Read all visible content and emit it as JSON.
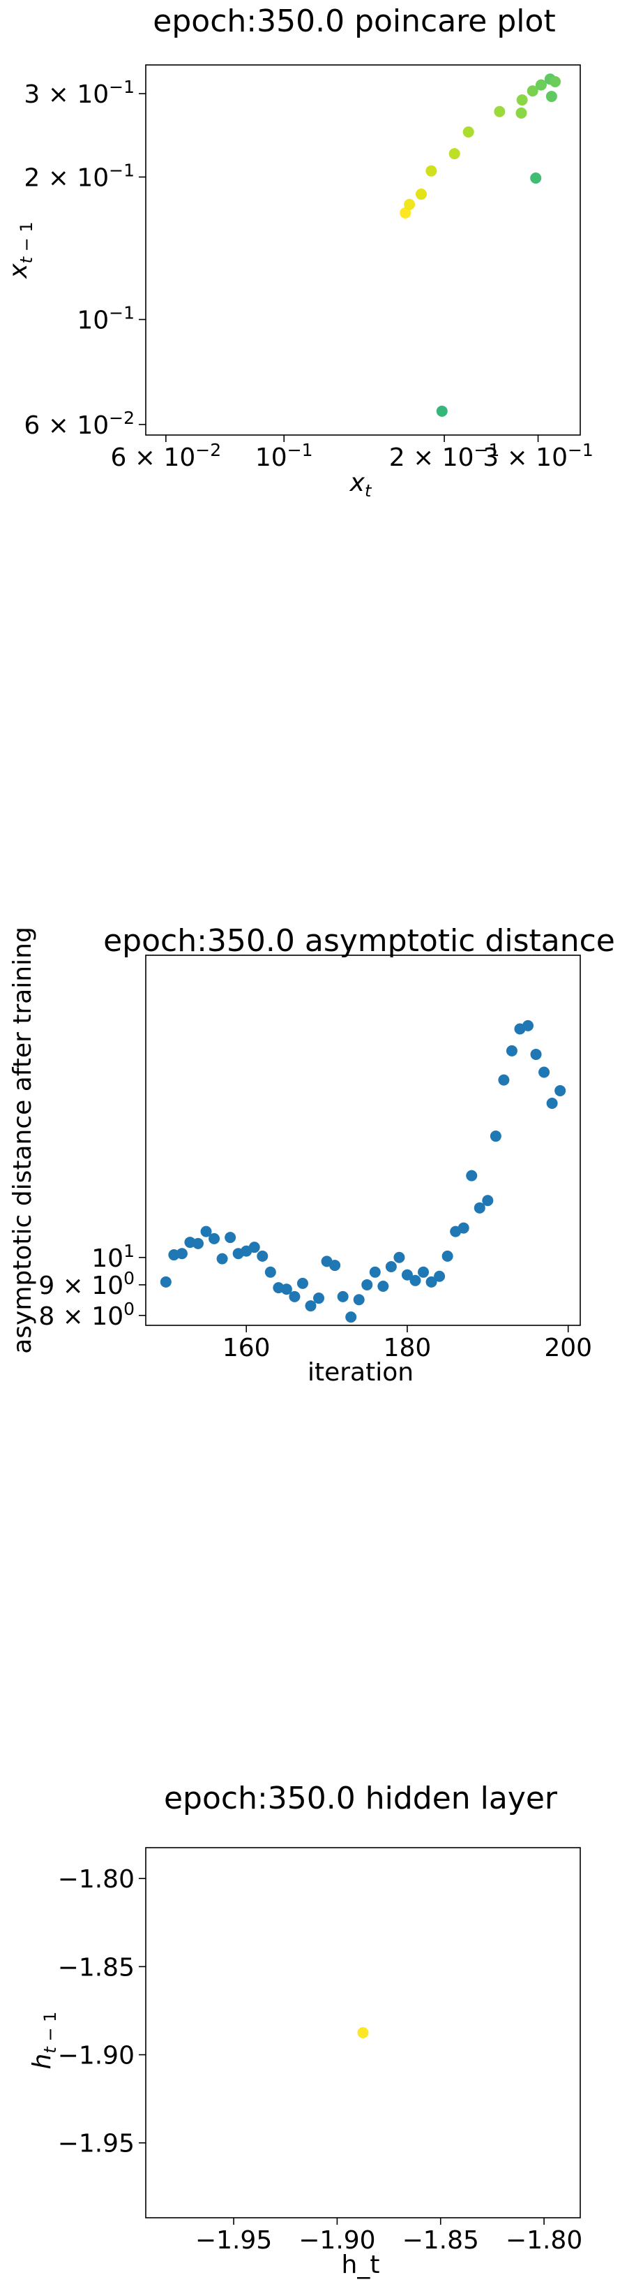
{
  "chart_data": [
    {
      "type": "scatter",
      "title": "epoch:350.0 poincare plot",
      "xlabel": "x_t",
      "ylabel": "x_{t-1}",
      "xscale": "log",
      "yscale": "log",
      "xlim": [
        0.055,
        0.36
      ],
      "ylim": [
        0.057,
        0.345
      ],
      "grid": false,
      "colormap": "viridis",
      "x_ticks": [
        {
          "value": 0.06,
          "label_base": "6 × 10",
          "label_exp": "−2"
        },
        {
          "value": 0.1,
          "label_base": "10",
          "label_exp": "−1"
        },
        {
          "value": 0.2,
          "label_base": "2 × 10",
          "label_exp": "−1"
        },
        {
          "value": 0.3,
          "label_base": "3 × 10",
          "label_exp": "−1"
        }
      ],
      "y_ticks": [
        {
          "value": 0.06,
          "label_base": "6 × 10",
          "label_exp": "−2"
        },
        {
          "value": 0.1,
          "label_base": "10",
          "label_exp": "−1"
        },
        {
          "value": 0.2,
          "label_base": "2 × 10",
          "label_exp": "−1"
        },
        {
          "value": 0.3,
          "label_base": "3 × 10",
          "label_exp": "−1"
        }
      ],
      "points": [
        {
          "x": 0.169,
          "y": 0.168,
          "color": "#fde725"
        },
        {
          "x": 0.172,
          "y": 0.175,
          "color": "#f1e51d"
        },
        {
          "x": 0.181,
          "y": 0.184,
          "color": "#e2e418"
        },
        {
          "x": 0.189,
          "y": 0.206,
          "color": "#d0e11c"
        },
        {
          "x": 0.198,
          "y": 0.064,
          "color": "#35b779"
        },
        {
          "x": 0.209,
          "y": 0.224,
          "color": "#bddf26"
        },
        {
          "x": 0.222,
          "y": 0.249,
          "color": "#addc30"
        },
        {
          "x": 0.254,
          "y": 0.275,
          "color": "#9bd93c"
        },
        {
          "x": 0.279,
          "y": 0.273,
          "color": "#8bd646"
        },
        {
          "x": 0.28,
          "y": 0.291,
          "color": "#8bd646"
        },
        {
          "x": 0.297,
          "y": 0.199,
          "color": "#40bd72"
        },
        {
          "x": 0.293,
          "y": 0.304,
          "color": "#7ad151"
        },
        {
          "x": 0.304,
          "y": 0.313,
          "color": "#6ccd5a"
        },
        {
          "x": 0.316,
          "y": 0.322,
          "color": "#5ec962"
        },
        {
          "x": 0.318,
          "y": 0.296,
          "color": "#60ca60"
        },
        {
          "x": 0.323,
          "y": 0.318,
          "color": "#6ccd5a"
        }
      ]
    },
    {
      "type": "scatter",
      "title": "epoch:350.0 asymptotic distance",
      "xlabel": "iteration",
      "ylabel": "asymptotic distance after training",
      "yscale": "log",
      "xlim": [
        147.5,
        201.5
      ],
      "ylim": [
        7.7,
        32.0
      ],
      "grid": false,
      "color": "#1f77b4",
      "x_ticks": [
        {
          "value": 160,
          "label": "160"
        },
        {
          "value": 180,
          "label": "180"
        },
        {
          "value": 200,
          "label": "200"
        }
      ],
      "y_ticks": [
        {
          "value": 8,
          "label_base": "8 × 10",
          "label_exp": "0"
        },
        {
          "value": 9,
          "label_base": "9 × 10",
          "label_exp": "0"
        },
        {
          "value": 10,
          "label_base": "10",
          "label_exp": "1"
        }
      ],
      "x": [
        150,
        151,
        152,
        153,
        154,
        155,
        156,
        157,
        158,
        159,
        160,
        161,
        162,
        163,
        164,
        165,
        166,
        167,
        168,
        169,
        170,
        171,
        172,
        173,
        174,
        175,
        176,
        177,
        178,
        179,
        180,
        181,
        182,
        183,
        184,
        185,
        186,
        187,
        188,
        189,
        190,
        191,
        192,
        193,
        194,
        195,
        196,
        197,
        198,
        199
      ],
      "y": [
        9.1,
        10.1,
        10.15,
        10.6,
        10.55,
        11.05,
        10.75,
        9.95,
        10.8,
        10.15,
        10.25,
        10.4,
        10.05,
        9.45,
        8.9,
        8.85,
        8.6,
        9.05,
        8.3,
        8.55,
        9.85,
        9.7,
        8.6,
        7.95,
        8.5,
        9.0,
        9.45,
        8.95,
        9.65,
        10.0,
        9.35,
        9.15,
        9.45,
        9.1,
        9.3,
        10.05,
        11.05,
        11.2,
        13.7,
        12.1,
        12.45,
        15.95,
        19.8,
        22.15,
        24.1,
        24.4,
        21.85,
        20.4,
        18.1,
        19.0
      ]
    },
    {
      "type": "scatter",
      "title": "epoch:350.0 hidden layer",
      "xlabel": "h_t",
      "ylabel": "h_{t-1}",
      "xlim": [
        -1.9925,
        -1.7825
      ],
      "ylim": [
        -1.9925,
        -1.7825
      ],
      "grid": false,
      "x_ticks": [
        {
          "value": -1.95,
          "label": "−1.95"
        },
        {
          "value": -1.9,
          "label": "−1.90"
        },
        {
          "value": -1.85,
          "label": "−1.85"
        },
        {
          "value": -1.8,
          "label": "−1.80"
        }
      ],
      "y_ticks": [
        {
          "value": -1.8,
          "label": "−1.80"
        },
        {
          "value": -1.85,
          "label": "−1.85"
        },
        {
          "value": -1.9,
          "label": "−1.90"
        },
        {
          "value": -1.95,
          "label": "−1.95"
        }
      ],
      "points": [
        {
          "x": -1.8875,
          "y": -1.8875,
          "color": "#fde725"
        }
      ]
    }
  ]
}
